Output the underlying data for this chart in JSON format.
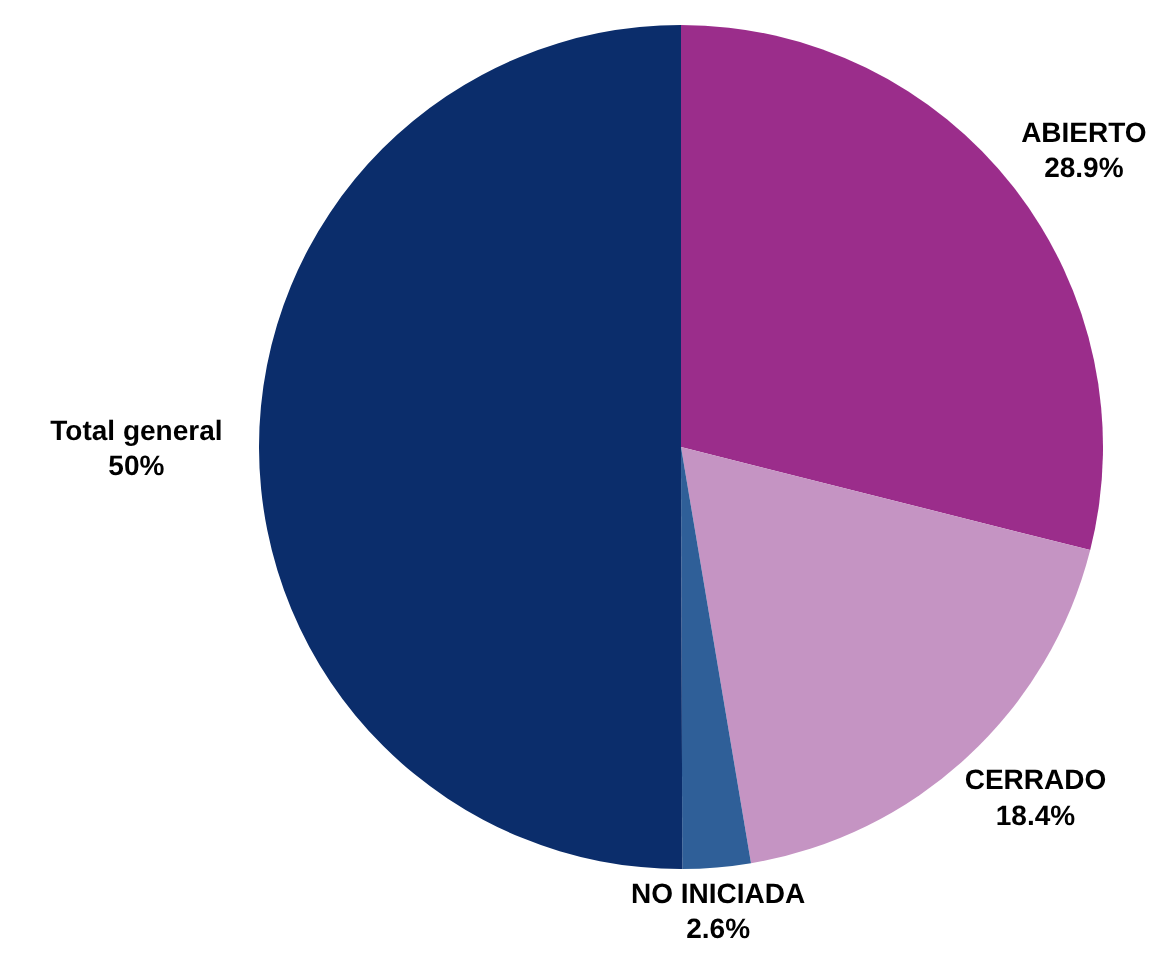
{
  "chart_data": {
    "type": "pie",
    "categories": [
      "ABIERTO",
      "CERRADO",
      "NO INICIADA",
      "Total general"
    ],
    "values": [
      28.9,
      18.4,
      2.6,
      50
    ],
    "colors": [
      "#9b2d8b",
      "#c594c3",
      "#2f5f98",
      "#0b2d6b"
    ],
    "value_labels": [
      "28.9%",
      "18.4%",
      "2.6%",
      "50%"
    ]
  }
}
